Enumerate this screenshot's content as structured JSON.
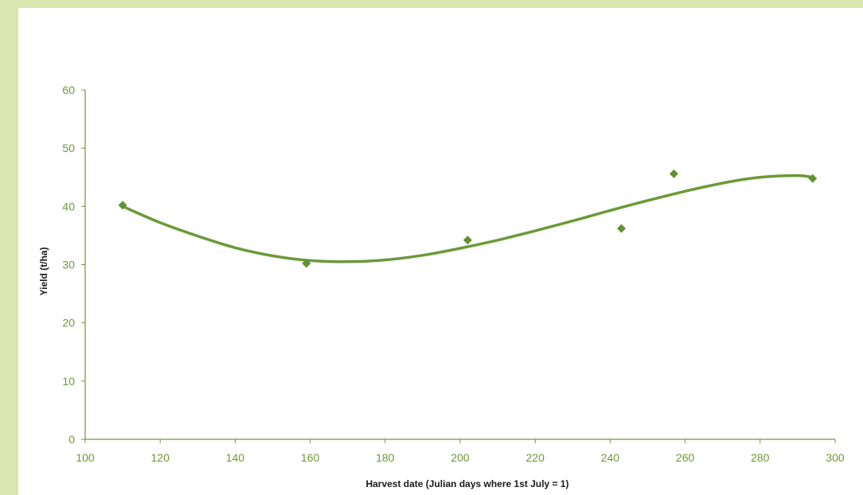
{
  "chart_data": {
    "type": "scatter",
    "title": "",
    "xlabel": "Harvest date (Julian days where 1st July = 1)",
    "ylabel": "Yield (t/ha)",
    "xlim": [
      100,
      300
    ],
    "ylim": [
      0,
      60
    ],
    "xticks": [
      "100",
      "120",
      "140",
      "160",
      "180",
      "200",
      "220",
      "240",
      "260",
      "280",
      "300"
    ],
    "yticks": [
      "0",
      "10",
      "20",
      "30",
      "40",
      "50",
      "60"
    ],
    "grid": false,
    "legend": "none",
    "series": [
      {
        "x": [
          110,
          159,
          202,
          243,
          257,
          294
        ],
        "y": [
          40.2,
          30.2,
          34.2,
          36.2,
          45.6,
          44.8
        ],
        "marker": "diamond",
        "color": "#5f9331"
      }
    ],
    "trendline": {
      "type": "polynomial-3",
      "color": "#6a9a38",
      "x": [
        110,
        120,
        130,
        140,
        150,
        160,
        170,
        180,
        190,
        200,
        210,
        220,
        230,
        240,
        250,
        260,
        270,
        280,
        290,
        294
      ],
      "y": [
        40.0,
        37.2,
        34.9,
        32.9,
        31.5,
        30.7,
        30.5,
        30.8,
        31.6,
        32.8,
        34.2,
        35.8,
        37.5,
        39.3,
        41.0,
        42.6,
        44.0,
        45.0,
        45.3,
        45.0
      ]
    }
  }
}
